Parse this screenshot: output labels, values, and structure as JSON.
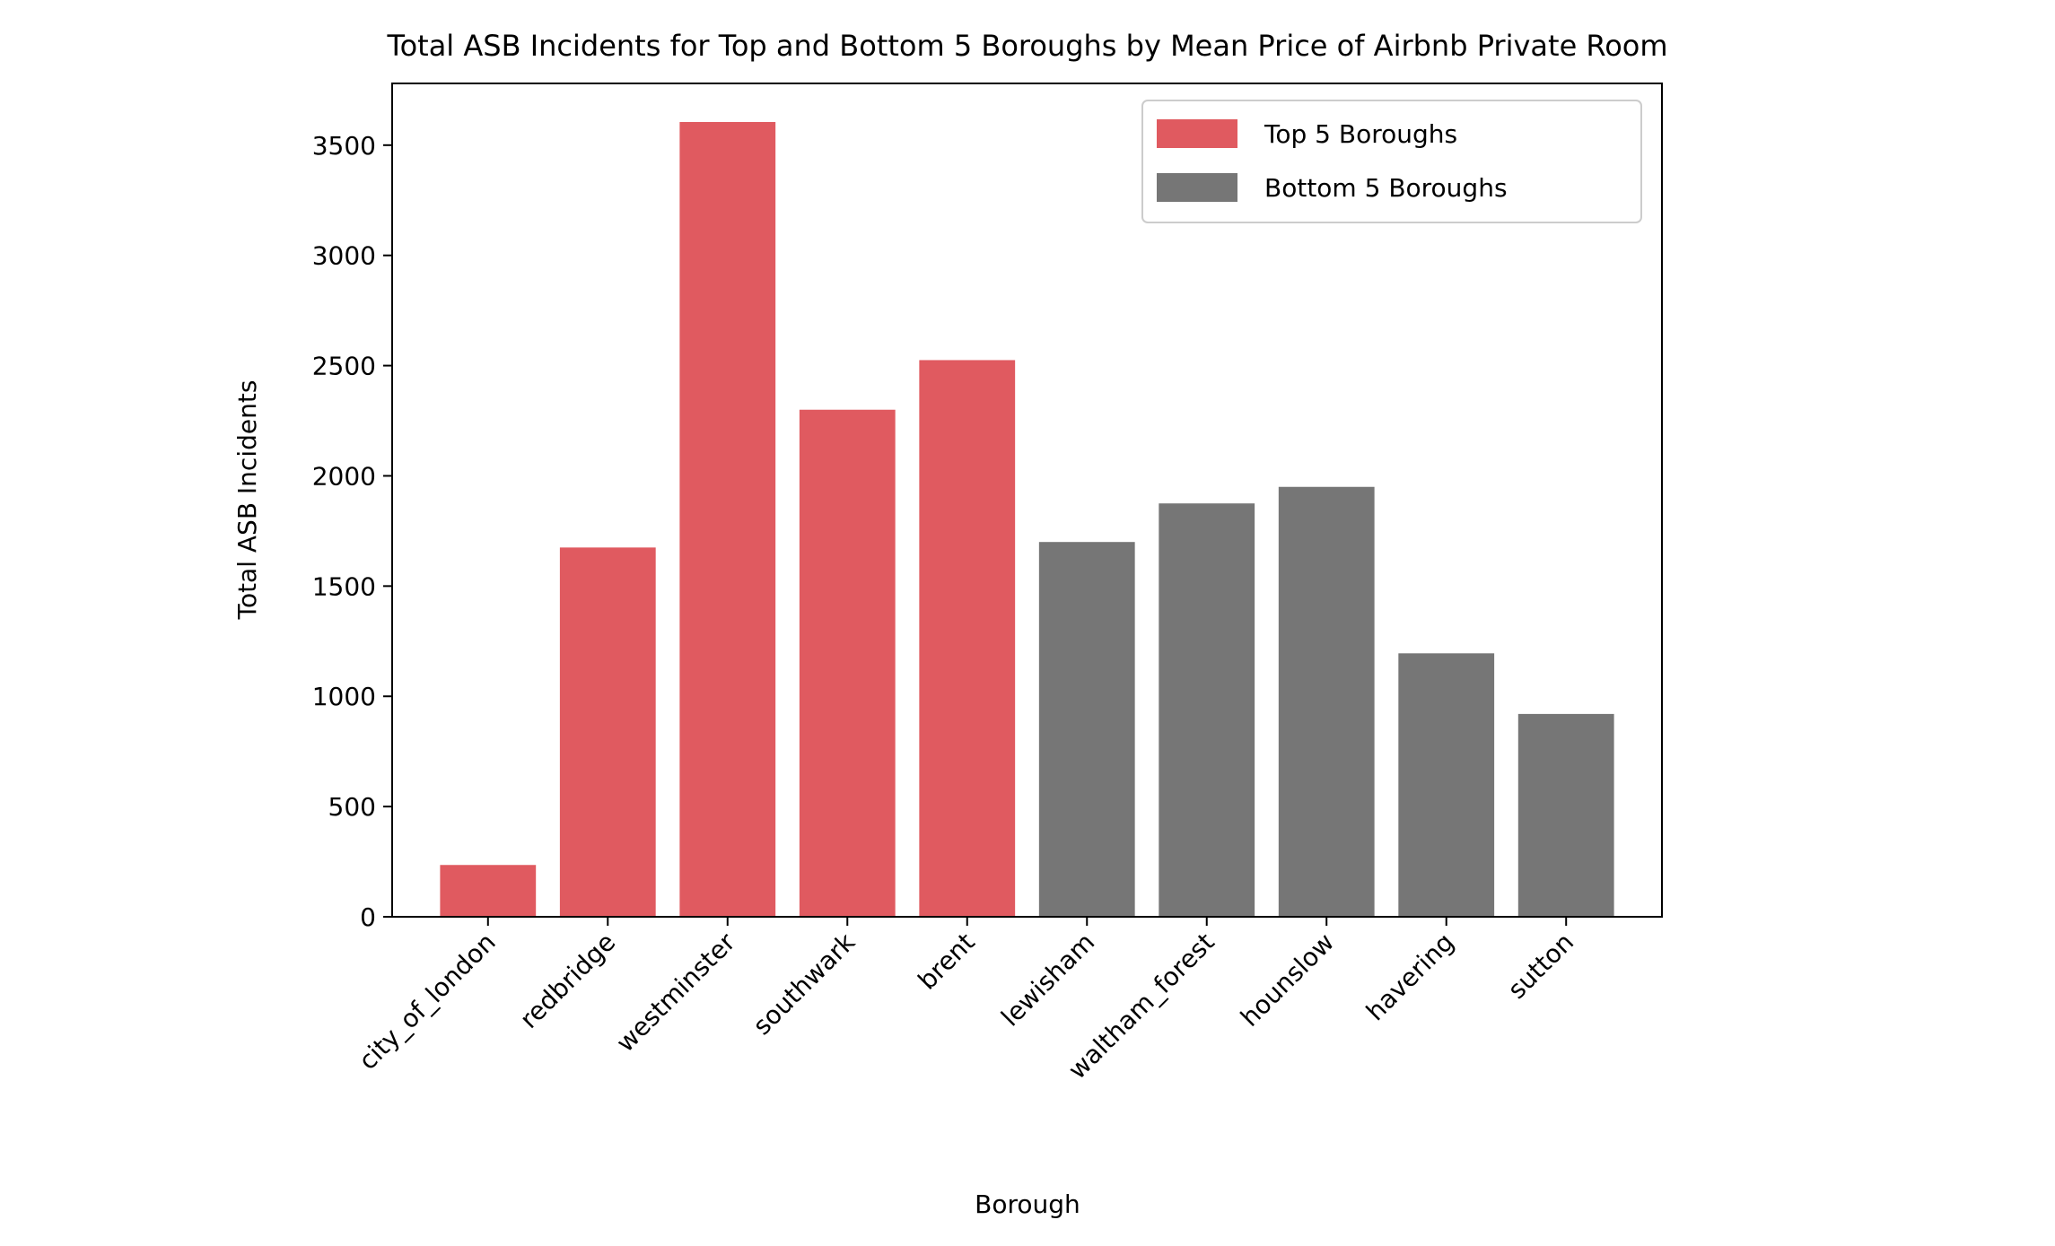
{
  "chart_data": {
    "type": "bar",
    "title": "Total ASB Incidents for Top and Bottom 5 Boroughs by Mean Price of Airbnb Private Room",
    "xlabel": "Borough",
    "ylabel": "Total ASB Incidents",
    "categories": [
      "city_of_london",
      "redbridge",
      "westminster",
      "southwark",
      "brent",
      "lewisham",
      "waltham_forest",
      "hounslow",
      "havering",
      "sutton"
    ],
    "values": [
      235,
      1675,
      3605,
      2300,
      2525,
      1700,
      1875,
      1950,
      1195,
      920
    ],
    "groups": [
      "top",
      "top",
      "top",
      "top",
      "top",
      "bottom",
      "bottom",
      "bottom",
      "bottom",
      "bottom"
    ],
    "series": [
      {
        "name": "Top 5 Boroughs",
        "key": "top",
        "color": "#e05a60"
      },
      {
        "name": "Bottom 5 Boroughs",
        "key": "bottom",
        "color": "#767676"
      }
    ],
    "ylim": [
      0,
      3780
    ],
    "yticks": [
      0,
      500,
      1000,
      1500,
      2000,
      2500,
      3000,
      3500
    ],
    "grid": false,
    "legend_position": "top-right"
  }
}
